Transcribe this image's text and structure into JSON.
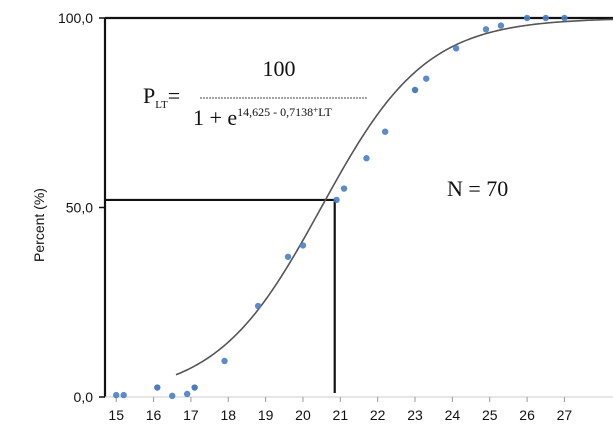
{
  "chart_data": {
    "type": "scatter",
    "ylabel": "Percent (%)",
    "xlabel": "",
    "title": "",
    "xlim": [
      14.7,
      28.3
    ],
    "ylim": [
      0,
      100
    ],
    "x_ticks": [
      "15",
      "16",
      "17",
      "18",
      "19",
      "20",
      "21",
      "22",
      "23",
      "24",
      "25",
      "26",
      "27"
    ],
    "y_ticks": [
      "0,0",
      "50,0",
      "100,0"
    ],
    "grid": false,
    "series": [
      {
        "x": [
          15.0,
          15.2,
          16.1,
          16.5,
          16.9,
          17.1,
          17.9,
          18.8,
          19.6,
          20.0,
          20.9,
          21.1,
          21.7,
          22.2,
          23.0,
          23.3,
          24.1,
          24.9,
          25.3,
          26.0,
          26.5,
          27.0
        ],
        "y": [
          0.5,
          0.5,
          2.5,
          0.3,
          0.8,
          2.5,
          9.5,
          24,
          37,
          40,
          52,
          55,
          63,
          70,
          81,
          84,
          92,
          97,
          98,
          100,
          100,
          100
        ],
        "colors": [
          "#4a7fc1",
          "#4a7fc1",
          "#3a6fb5",
          "#4a7fc1",
          "#4a7fc1",
          "#3a6fb5",
          "#4a7fc1",
          "#4a7fc1",
          "#4a7fc1",
          "#4a7fc1",
          "#4a7fc1",
          "#4a7fc1",
          "#4a7fc1",
          "#4a7fc1",
          "#3a6fb5",
          "#4a7fc1",
          "#4a7fc1",
          "#4a7fc1",
          "#4a7fc1",
          "#4a7fc1",
          "#4a7fc1",
          "#4a7fc1"
        ]
      }
    ],
    "fit_curve": {
      "a": 14.625,
      "b": 0.7138,
      "from": 16.6,
      "to": 28.3
    },
    "reference_lines": {
      "x": 20.85,
      "y": 52
    },
    "annotations": {
      "equation_lhs": "P",
      "equation_lhs_sub": "LT",
      "equation_equals": "=",
      "equation_numerator": "100",
      "equation_denominator_prefix": "1 + e",
      "equation_exponent": "14,625 - 0,7138",
      "equation_exponent_plus": "+",
      "equation_exponent_suffix": "LT",
      "n_label": "N = 70"
    },
    "colors": {
      "curve": "#555555",
      "frame": "#111111",
      "marker": "#4a7fc1"
    }
  }
}
